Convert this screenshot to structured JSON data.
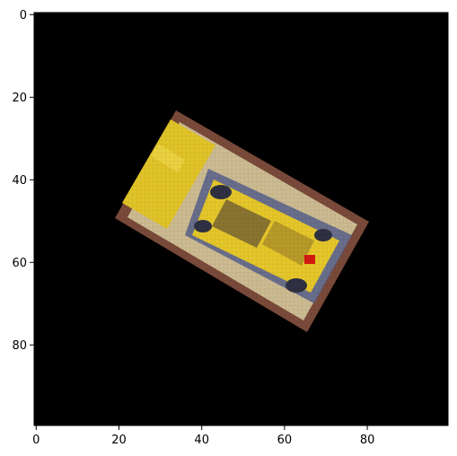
{
  "figure": {
    "x_ticks": [
      "0",
      "20",
      "40",
      "60",
      "80"
    ],
    "y_ticks": [
      "0",
      "20",
      "40",
      "60",
      "80"
    ],
    "x_range": [
      0,
      100
    ],
    "y_range": [
      0,
      100
    ],
    "y_axis_direction": "downward (image coordinates)",
    "background_color": "#000000",
    "image_content": "top-down pixelated view of a yellow toy car inside a tilted rectangular tray with a red marker near the car's front"
  }
}
